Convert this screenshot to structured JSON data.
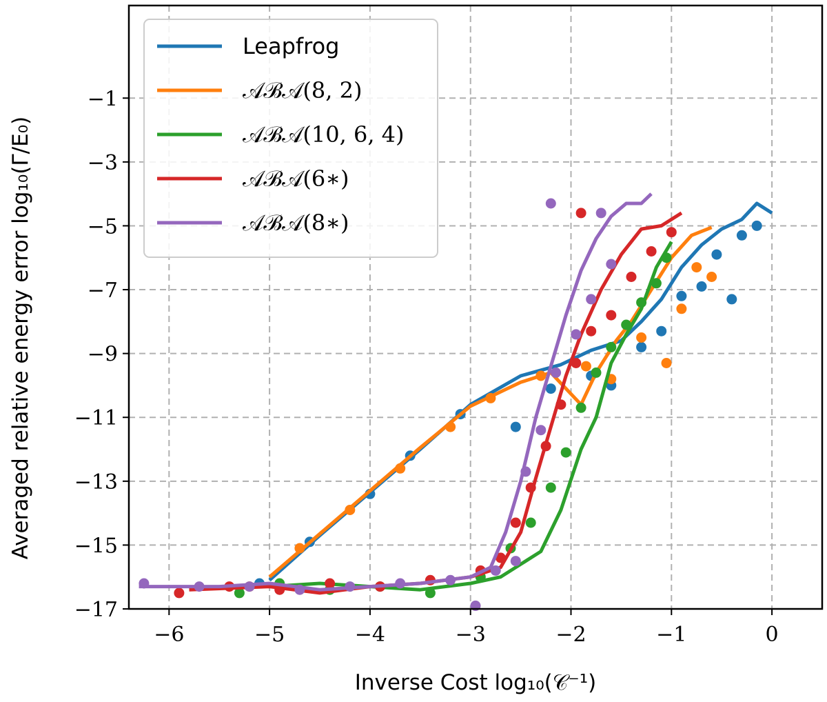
{
  "chart_data": {
    "type": "line",
    "title": "",
    "xlabel": "Inverse Cost log₁₀(𝒞⁻¹)",
    "ylabel": "Averaged relative energy error log₁₀(Γ/E₀)",
    "xlim": [
      -6.4,
      0.5
    ],
    "ylim": [
      -17,
      1.9
    ],
    "xticks": [
      -6,
      -5,
      -4,
      -3,
      -2,
      -1,
      0
    ],
    "xtick_labels": [
      "−6",
      "−5",
      "−4",
      "−3",
      "−2",
      "−1",
      "0"
    ],
    "yticks": [
      -1,
      -3,
      -5,
      -7,
      -9,
      -11,
      -13,
      -15,
      -17
    ],
    "ytick_labels": [
      "−1",
      "−3",
      "−5",
      "−7",
      "−9",
      "−11",
      "−13",
      "−15",
      "−17"
    ],
    "grid": true,
    "grid_style": "dashed",
    "legend_position": "top-left",
    "series": [
      {
        "name": "Leapfrog",
        "color": "#1f77b4",
        "line": [
          [
            -5.0,
            -16.1
          ],
          [
            -4.5,
            -14.7
          ],
          [
            -4.0,
            -13.35
          ],
          [
            -3.5,
            -12.0
          ],
          [
            -3.0,
            -10.6
          ],
          [
            -2.5,
            -9.7
          ],
          [
            -2.1,
            -9.35
          ],
          [
            -1.8,
            -8.9
          ],
          [
            -1.5,
            -8.6
          ],
          [
            -1.3,
            -8.0
          ],
          [
            -1.1,
            -7.3
          ],
          [
            -0.9,
            -6.3
          ],
          [
            -0.7,
            -5.6
          ],
          [
            -0.5,
            -5.1
          ],
          [
            -0.3,
            -4.8
          ],
          [
            -0.15,
            -4.3
          ],
          [
            0.0,
            -4.6
          ]
        ],
        "points": [
          [
            -5.1,
            -16.2
          ],
          [
            -4.6,
            -14.9
          ],
          [
            -4.0,
            -13.4
          ],
          [
            -3.6,
            -12.2
          ],
          [
            -3.1,
            -10.9
          ],
          [
            -2.55,
            -11.3
          ],
          [
            -2.2,
            -10.1
          ],
          [
            -1.8,
            -9.7
          ],
          [
            -1.6,
            -10.0
          ],
          [
            -1.3,
            -8.8
          ],
          [
            -1.1,
            -8.3
          ],
          [
            -0.9,
            -7.2
          ],
          [
            -0.7,
            -6.9
          ],
          [
            -0.55,
            -5.9
          ],
          [
            -0.4,
            -7.3
          ],
          [
            -0.3,
            -5.3
          ],
          [
            -0.15,
            -5.0
          ]
        ]
      },
      {
        "name": "𝒜ℬ𝒜(8, 2)",
        "color": "#ff7f0e",
        "line": [
          [
            -5.0,
            -16.0
          ],
          [
            -4.5,
            -14.65
          ],
          [
            -4.0,
            -13.3
          ],
          [
            -3.5,
            -11.95
          ],
          [
            -3.0,
            -10.65
          ],
          [
            -2.5,
            -9.9
          ],
          [
            -2.2,
            -9.6
          ],
          [
            -1.9,
            -10.6
          ],
          [
            -1.75,
            -9.6
          ],
          [
            -1.55,
            -8.6
          ],
          [
            -1.4,
            -8.0
          ],
          [
            -1.2,
            -7.0
          ],
          [
            -1.0,
            -6.0
          ],
          [
            -0.8,
            -5.3
          ],
          [
            -0.6,
            -5.05
          ]
        ],
        "points": [
          [
            -5.2,
            -16.3
          ],
          [
            -4.7,
            -15.1
          ],
          [
            -4.2,
            -13.9
          ],
          [
            -3.7,
            -12.6
          ],
          [
            -3.2,
            -11.3
          ],
          [
            -2.8,
            -10.4
          ],
          [
            -2.3,
            -9.7
          ],
          [
            -1.85,
            -9.4
          ],
          [
            -1.6,
            -9.8
          ],
          [
            -1.3,
            -8.5
          ],
          [
            -1.05,
            -9.3
          ],
          [
            -0.9,
            -7.6
          ],
          [
            -0.75,
            -6.3
          ],
          [
            -0.6,
            -6.6
          ]
        ]
      },
      {
        "name": "𝒜ℬ𝒜(10, 6, 4)",
        "color": "#2ca02c",
        "line": [
          [
            -5.0,
            -16.3
          ],
          [
            -4.5,
            -16.2
          ],
          [
            -4.0,
            -16.3
          ],
          [
            -3.5,
            -16.4
          ],
          [
            -3.0,
            -16.2
          ],
          [
            -2.7,
            -16.0
          ],
          [
            -2.5,
            -15.6
          ],
          [
            -2.3,
            -15.2
          ],
          [
            -2.1,
            -13.9
          ],
          [
            -1.9,
            -12.0
          ],
          [
            -1.75,
            -11.0
          ],
          [
            -1.6,
            -9.3
          ],
          [
            -1.45,
            -8.4
          ],
          [
            -1.3,
            -7.6
          ],
          [
            -1.15,
            -6.3
          ],
          [
            -1.0,
            -5.5
          ]
        ],
        "points": [
          [
            -5.3,
            -16.5
          ],
          [
            -4.9,
            -16.2
          ],
          [
            -4.4,
            -16.4
          ],
          [
            -3.9,
            -16.3
          ],
          [
            -3.4,
            -16.5
          ],
          [
            -2.9,
            -16.0
          ],
          [
            -2.6,
            -15.1
          ],
          [
            -2.4,
            -14.3
          ],
          [
            -2.2,
            -13.2
          ],
          [
            -2.05,
            -12.1
          ],
          [
            -1.9,
            -10.7
          ],
          [
            -1.75,
            -9.6
          ],
          [
            -1.6,
            -8.8
          ],
          [
            -1.45,
            -8.1
          ],
          [
            -1.3,
            -7.4
          ],
          [
            -1.15,
            -6.8
          ],
          [
            -1.05,
            -6.0
          ]
        ]
      },
      {
        "name": "𝒜ℬ𝒜(6∗)",
        "color": "#d62728",
        "line": [
          [
            -5.8,
            -16.4
          ],
          [
            -5.0,
            -16.3
          ],
          [
            -4.5,
            -16.5
          ],
          [
            -4.0,
            -16.3
          ],
          [
            -3.5,
            -16.2
          ],
          [
            -3.0,
            -16.0
          ],
          [
            -2.7,
            -15.7
          ],
          [
            -2.5,
            -14.6
          ],
          [
            -2.35,
            -12.9
          ],
          [
            -2.2,
            -11.3
          ],
          [
            -2.05,
            -9.7
          ],
          [
            -1.9,
            -8.4
          ],
          [
            -1.7,
            -7.0
          ],
          [
            -1.5,
            -5.9
          ],
          [
            -1.3,
            -5.1
          ],
          [
            -1.1,
            -5.0
          ],
          [
            -0.9,
            -4.6
          ]
        ],
        "points": [
          [
            -5.9,
            -16.5
          ],
          [
            -5.4,
            -16.3
          ],
          [
            -4.9,
            -16.4
          ],
          [
            -4.4,
            -16.2
          ],
          [
            -3.9,
            -16.3
          ],
          [
            -3.4,
            -16.1
          ],
          [
            -2.9,
            -15.8
          ],
          [
            -2.7,
            -15.4
          ],
          [
            -2.55,
            -14.3
          ],
          [
            -2.4,
            -13.2
          ],
          [
            -2.25,
            -11.9
          ],
          [
            -2.1,
            -10.6
          ],
          [
            -1.95,
            -9.3
          ],
          [
            -1.8,
            -8.3
          ],
          [
            -1.6,
            -7.8
          ],
          [
            -1.4,
            -6.6
          ],
          [
            -1.2,
            -5.8
          ],
          [
            -1.0,
            -5.2
          ],
          [
            -1.9,
            -4.6
          ]
        ]
      },
      {
        "name": "𝒜ℬ𝒜(8∗)",
        "color": "#9467bd",
        "line": [
          [
            -6.3,
            -16.3
          ],
          [
            -5.5,
            -16.3
          ],
          [
            -5.0,
            -16.2
          ],
          [
            -4.5,
            -16.4
          ],
          [
            -4.0,
            -16.3
          ],
          [
            -3.5,
            -16.2
          ],
          [
            -3.0,
            -16.0
          ],
          [
            -2.8,
            -15.7
          ],
          [
            -2.65,
            -14.6
          ],
          [
            -2.5,
            -13.0
          ],
          [
            -2.35,
            -11.0
          ],
          [
            -2.2,
            -9.4
          ],
          [
            -2.05,
            -7.8
          ],
          [
            -1.9,
            -6.4
          ],
          [
            -1.75,
            -5.4
          ],
          [
            -1.6,
            -4.7
          ],
          [
            -1.45,
            -4.3
          ],
          [
            -1.3,
            -4.3
          ],
          [
            -1.2,
            -4.0
          ]
        ],
        "points": [
          [
            -6.25,
            -16.2
          ],
          [
            -5.7,
            -16.3
          ],
          [
            -5.2,
            -16.3
          ],
          [
            -4.7,
            -16.4
          ],
          [
            -4.2,
            -16.3
          ],
          [
            -3.7,
            -16.2
          ],
          [
            -3.2,
            -16.1
          ],
          [
            -2.95,
            -16.9
          ],
          [
            -2.75,
            -15.8
          ],
          [
            -2.55,
            -15.5
          ],
          [
            -2.45,
            -12.7
          ],
          [
            -2.3,
            -11.4
          ],
          [
            -2.15,
            -9.6
          ],
          [
            -1.95,
            -8.4
          ],
          [
            -1.8,
            -7.3
          ],
          [
            -1.6,
            -6.2
          ],
          [
            -2.2,
            -4.3
          ],
          [
            -1.7,
            -4.6
          ]
        ]
      }
    ]
  }
}
